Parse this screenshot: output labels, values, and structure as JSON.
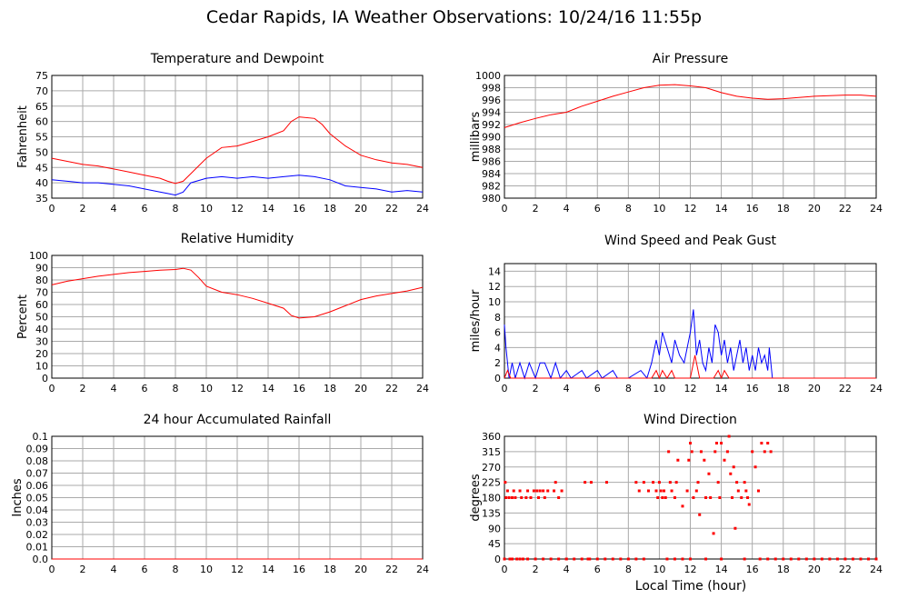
{
  "title": "Cedar Rapids, IA Weather Observations: 10/24/16 11:55p",
  "xlabel": "Local Time (hour)",
  "colors": {
    "red": "#ff0000",
    "blue": "#0000ff",
    "grid": "#aaaaaa",
    "frame": "#000000"
  },
  "chart_data": [
    {
      "type": "line",
      "title": "Temperature and Dewpoint",
      "ylabel": "Fahrenheit",
      "xlim": [
        0,
        24
      ],
      "ylim": [
        35,
        75
      ],
      "yticks": [
        35,
        40,
        45,
        50,
        55,
        60,
        65,
        70,
        75
      ],
      "xticks": [
        0,
        2,
        4,
        6,
        8,
        10,
        12,
        14,
        16,
        18,
        20,
        22,
        24
      ],
      "series": [
        {
          "color": "red",
          "x": [
            0,
            1,
            2,
            3,
            4,
            5,
            6,
            7,
            7.5,
            8,
            8.5,
            9,
            10,
            11,
            12,
            13,
            14,
            15,
            15.5,
            16,
            17,
            17.5,
            18,
            19,
            20,
            21,
            22,
            23,
            24
          ],
          "y": [
            48,
            47,
            46,
            45.5,
            44.5,
            43.5,
            42.5,
            41.5,
            40.5,
            39.8,
            40.5,
            43,
            48,
            51.5,
            52,
            53.5,
            55,
            57,
            60,
            61.5,
            61,
            59,
            56,
            52,
            49,
            47.5,
            46.5,
            46,
            45
          ]
        },
        {
          "color": "blue",
          "x": [
            0,
            1,
            2,
            3,
            4,
            5,
            6,
            7,
            7.5,
            8,
            8.5,
            9,
            10,
            11,
            12,
            13,
            14,
            15,
            16,
            17,
            18,
            19,
            20,
            21,
            22,
            23,
            24
          ],
          "y": [
            41,
            40.5,
            40,
            40,
            39.5,
            39,
            38,
            37,
            36.5,
            36,
            37,
            40,
            41.5,
            42,
            41.5,
            42,
            41.5,
            42,
            42.5,
            42,
            41,
            39,
            38.5,
            38,
            37,
            37.5,
            37
          ]
        }
      ]
    },
    {
      "type": "line",
      "title": "Air Pressure",
      "ylabel": "millibars",
      "xlim": [
        0,
        24
      ],
      "ylim": [
        980,
        1000
      ],
      "yticks": [
        980,
        982,
        984,
        986,
        988,
        990,
        992,
        994,
        996,
        998,
        1000
      ],
      "xticks": [
        0,
        2,
        4,
        6,
        8,
        10,
        12,
        14,
        16,
        18,
        20,
        22,
        24
      ],
      "series": [
        {
          "color": "red",
          "x": [
            0,
            1,
            2,
            3,
            4,
            5,
            6,
            7,
            8,
            9,
            10,
            11,
            12,
            13,
            14,
            15,
            16,
            17,
            18,
            19,
            20,
            21,
            22,
            23,
            24
          ],
          "y": [
            991.5,
            992.3,
            993,
            993.6,
            994,
            995,
            995.8,
            996.6,
            997.3,
            998,
            998.4,
            998.5,
            998.3,
            998,
            997.2,
            996.6,
            996.3,
            996.1,
            996.2,
            996.4,
            996.6,
            996.7,
            996.8,
            996.8,
            996.6
          ]
        }
      ]
    },
    {
      "type": "line",
      "title": "Relative Humidity",
      "ylabel": "Percent",
      "xlim": [
        0,
        24
      ],
      "ylim": [
        0,
        100
      ],
      "yticks": [
        0,
        10,
        20,
        30,
        40,
        50,
        60,
        70,
        80,
        90,
        100
      ],
      "xticks": [
        0,
        2,
        4,
        6,
        8,
        10,
        12,
        14,
        16,
        18,
        20,
        22,
        24
      ],
      "series": [
        {
          "color": "red",
          "x": [
            0,
            1,
            2,
            3,
            4,
            5,
            6,
            7,
            8,
            8.5,
            9,
            9.5,
            10,
            11,
            12,
            13,
            14,
            15,
            15.5,
            16,
            17,
            18,
            19,
            20,
            21,
            22,
            23,
            24
          ],
          "y": [
            76,
            79,
            81,
            83,
            84.5,
            86,
            87,
            88,
            88.5,
            89.5,
            88,
            82,
            75,
            70,
            68,
            65,
            61,
            57,
            51,
            49,
            50,
            54,
            59,
            64,
            67,
            69,
            71,
            74
          ]
        }
      ]
    },
    {
      "type": "line",
      "title": "Wind Speed and Peak Gust",
      "ylabel": "miles/hour",
      "xlim": [
        0,
        24
      ],
      "ylim": [
        0,
        15
      ],
      "yticks": [
        0,
        2,
        4,
        6,
        8,
        10,
        12,
        14
      ],
      "xticks": [
        0,
        2,
        4,
        6,
        8,
        10,
        12,
        14,
        16,
        18,
        20,
        22,
        24
      ],
      "series": [
        {
          "color": "blue",
          "x": [
            0,
            0.1,
            0.3,
            0.5,
            0.7,
            1,
            1.3,
            1.6,
            2,
            2.3,
            2.6,
            3,
            3.3,
            3.6,
            4,
            4.3,
            5,
            5.3,
            6,
            6.3,
            7,
            7.3,
            8,
            8.8,
            9.2,
            9.5,
            9.8,
            10,
            10.2,
            10.5,
            10.8,
            11,
            11.3,
            11.6,
            11.8,
            12,
            12.2,
            12.4,
            12.6,
            12.8,
            13,
            13.2,
            13.4,
            13.6,
            13.8,
            14,
            14.2,
            14.4,
            14.6,
            14.8,
            15,
            15.2,
            15.4,
            15.6,
            15.8,
            16,
            16.2,
            16.4,
            16.6,
            16.8,
            17,
            17.1,
            17.3,
            18,
            24
          ],
          "y": [
            7,
            4,
            0,
            2,
            0,
            2,
            0,
            2,
            0,
            2,
            2,
            0,
            2,
            0,
            1,
            0,
            1,
            0,
            1,
            0,
            1,
            0,
            0,
            1,
            0,
            2,
            5,
            3,
            6,
            4,
            2,
            5,
            3,
            2,
            4,
            6,
            9,
            3,
            5,
            2,
            1,
            4,
            2,
            7,
            6,
            3,
            5,
            2,
            4,
            1,
            3,
            5,
            2,
            4,
            1,
            3,
            1,
            4,
            2,
            3,
            1,
            4,
            0,
            0,
            0
          ]
        },
        {
          "color": "red",
          "x": [
            0,
            0.2,
            0.4,
            8,
            9.5,
            9.8,
            10,
            10.2,
            10.5,
            10.8,
            11,
            12,
            12.3,
            12.6,
            13,
            13.5,
            13.8,
            14,
            14.2,
            14.5,
            15,
            24
          ],
          "y": [
            0,
            1,
            0,
            0,
            0,
            1,
            0,
            1,
            0,
            1,
            0,
            0,
            3,
            0,
            0,
            0,
            1,
            0,
            1,
            0,
            0,
            0
          ]
        }
      ]
    },
    {
      "type": "line",
      "title": "24 hour Accumulated Rainfall",
      "ylabel": "Inches",
      "xlim": [
        0,
        24
      ],
      "ylim": [
        0,
        0.1
      ],
      "yticks": [
        0.0,
        0.01,
        0.02,
        0.03,
        0.04,
        0.05,
        0.06,
        0.07,
        0.08,
        0.09,
        0.1
      ],
      "ytick_labels": [
        "0.0",
        "0.01",
        "0.02",
        "0.03",
        "0.04",
        "0.05",
        "0.06",
        "0.07",
        "0.08",
        "0.09",
        "0.1"
      ],
      "xticks": [
        0,
        2,
        4,
        6,
        8,
        10,
        12,
        14,
        16,
        18,
        20,
        22,
        24
      ],
      "series": [
        {
          "color": "red",
          "x": [
            0,
            24
          ],
          "y": [
            0,
            0
          ]
        }
      ]
    },
    {
      "type": "scatter",
      "title": "Wind Direction",
      "ylabel": "degrees",
      "xlim": [
        0,
        24
      ],
      "ylim": [
        0,
        360
      ],
      "yticks": [
        0,
        45,
        90,
        135,
        180,
        225,
        270,
        315,
        360
      ],
      "xticks": [
        0,
        2,
        4,
        6,
        8,
        10,
        12,
        14,
        16,
        18,
        20,
        22,
        24
      ],
      "series": [
        {
          "color": "red",
          "x": [
            0.05,
            0.1,
            0.2,
            0.3,
            0.35,
            0.5,
            0.6,
            0.7,
            0.8,
            1.0,
            1.1,
            1.2,
            1.4,
            1.5,
            1.7,
            1.9,
            2.1,
            2.2,
            2.3,
            2.5,
            2.6,
            2.8,
            3.2,
            3.3,
            3.5,
            3.7,
            4.0,
            5.2,
            5.4,
            5.6,
            6.6,
            8.5,
            8.7,
            9.0,
            9.3,
            9.6,
            9.8,
            9.9,
            10.0,
            10.1,
            10.2,
            10.3,
            10.4,
            10.6,
            10.7,
            10.8,
            11.0,
            11.1,
            11.2,
            11.5,
            11.8,
            11.9,
            12.0,
            12.1,
            12.2,
            12.4,
            12.5,
            12.6,
            12.7,
            12.9,
            13.0,
            13.2,
            13.3,
            13.5,
            13.6,
            13.7,
            13.8,
            13.9,
            14.0,
            14.2,
            14.4,
            14.5,
            14.6,
            14.7,
            14.8,
            14.9,
            15.0,
            15.1,
            15.3,
            15.5,
            15.6,
            15.7,
            15.8,
            16.0,
            16.2,
            16.4,
            16.6,
            16.8,
            17.0,
            17.2
          ],
          "y": [
            225,
            180,
            200,
            180,
            0,
            180,
            200,
            180,
            0,
            200,
            180,
            0,
            180,
            200,
            180,
            200,
            200,
            180,
            200,
            200,
            180,
            200,
            200,
            225,
            180,
            200,
            0,
            225,
            0,
            225,
            225,
            225,
            200,
            225,
            200,
            225,
            200,
            180,
            225,
            200,
            180,
            200,
            180,
            315,
            225,
            200,
            180,
            225,
            290,
            155,
            200,
            290,
            340,
            315,
            180,
            200,
            225,
            130,
            315,
            290,
            180,
            250,
            180,
            75,
            315,
            340,
            225,
            180,
            340,
            290,
            315,
            360,
            250,
            180,
            270,
            90,
            225,
            200,
            180,
            225,
            200,
            180,
            160,
            315,
            270,
            200,
            340,
            315,
            340,
            315
          ]
        },
        {
          "color": "red",
          "x": [
            0,
            0.5,
            1,
            1.5,
            2,
            2.5,
            3,
            3.5,
            4,
            4.5,
            5,
            5.5,
            6,
            6.5,
            7,
            7.5,
            8,
            8.5,
            9,
            10.5,
            11,
            11.5,
            12,
            13,
            14,
            15.5,
            16.5,
            17,
            17.5,
            18,
            18.5,
            19,
            19.5,
            20,
            20.5,
            21,
            21.5,
            22,
            22.5,
            23,
            23.5,
            24
          ],
          "y": [
            0,
            0,
            0,
            0,
            0,
            0,
            0,
            0,
            0,
            0,
            0,
            0,
            0,
            0,
            0,
            0,
            0,
            0,
            0,
            0,
            0,
            0,
            0,
            0,
            0,
            0,
            0,
            0,
            0,
            0,
            0,
            0,
            0,
            0,
            0,
            0,
            0,
            0,
            0,
            0,
            0,
            0
          ]
        }
      ]
    }
  ]
}
